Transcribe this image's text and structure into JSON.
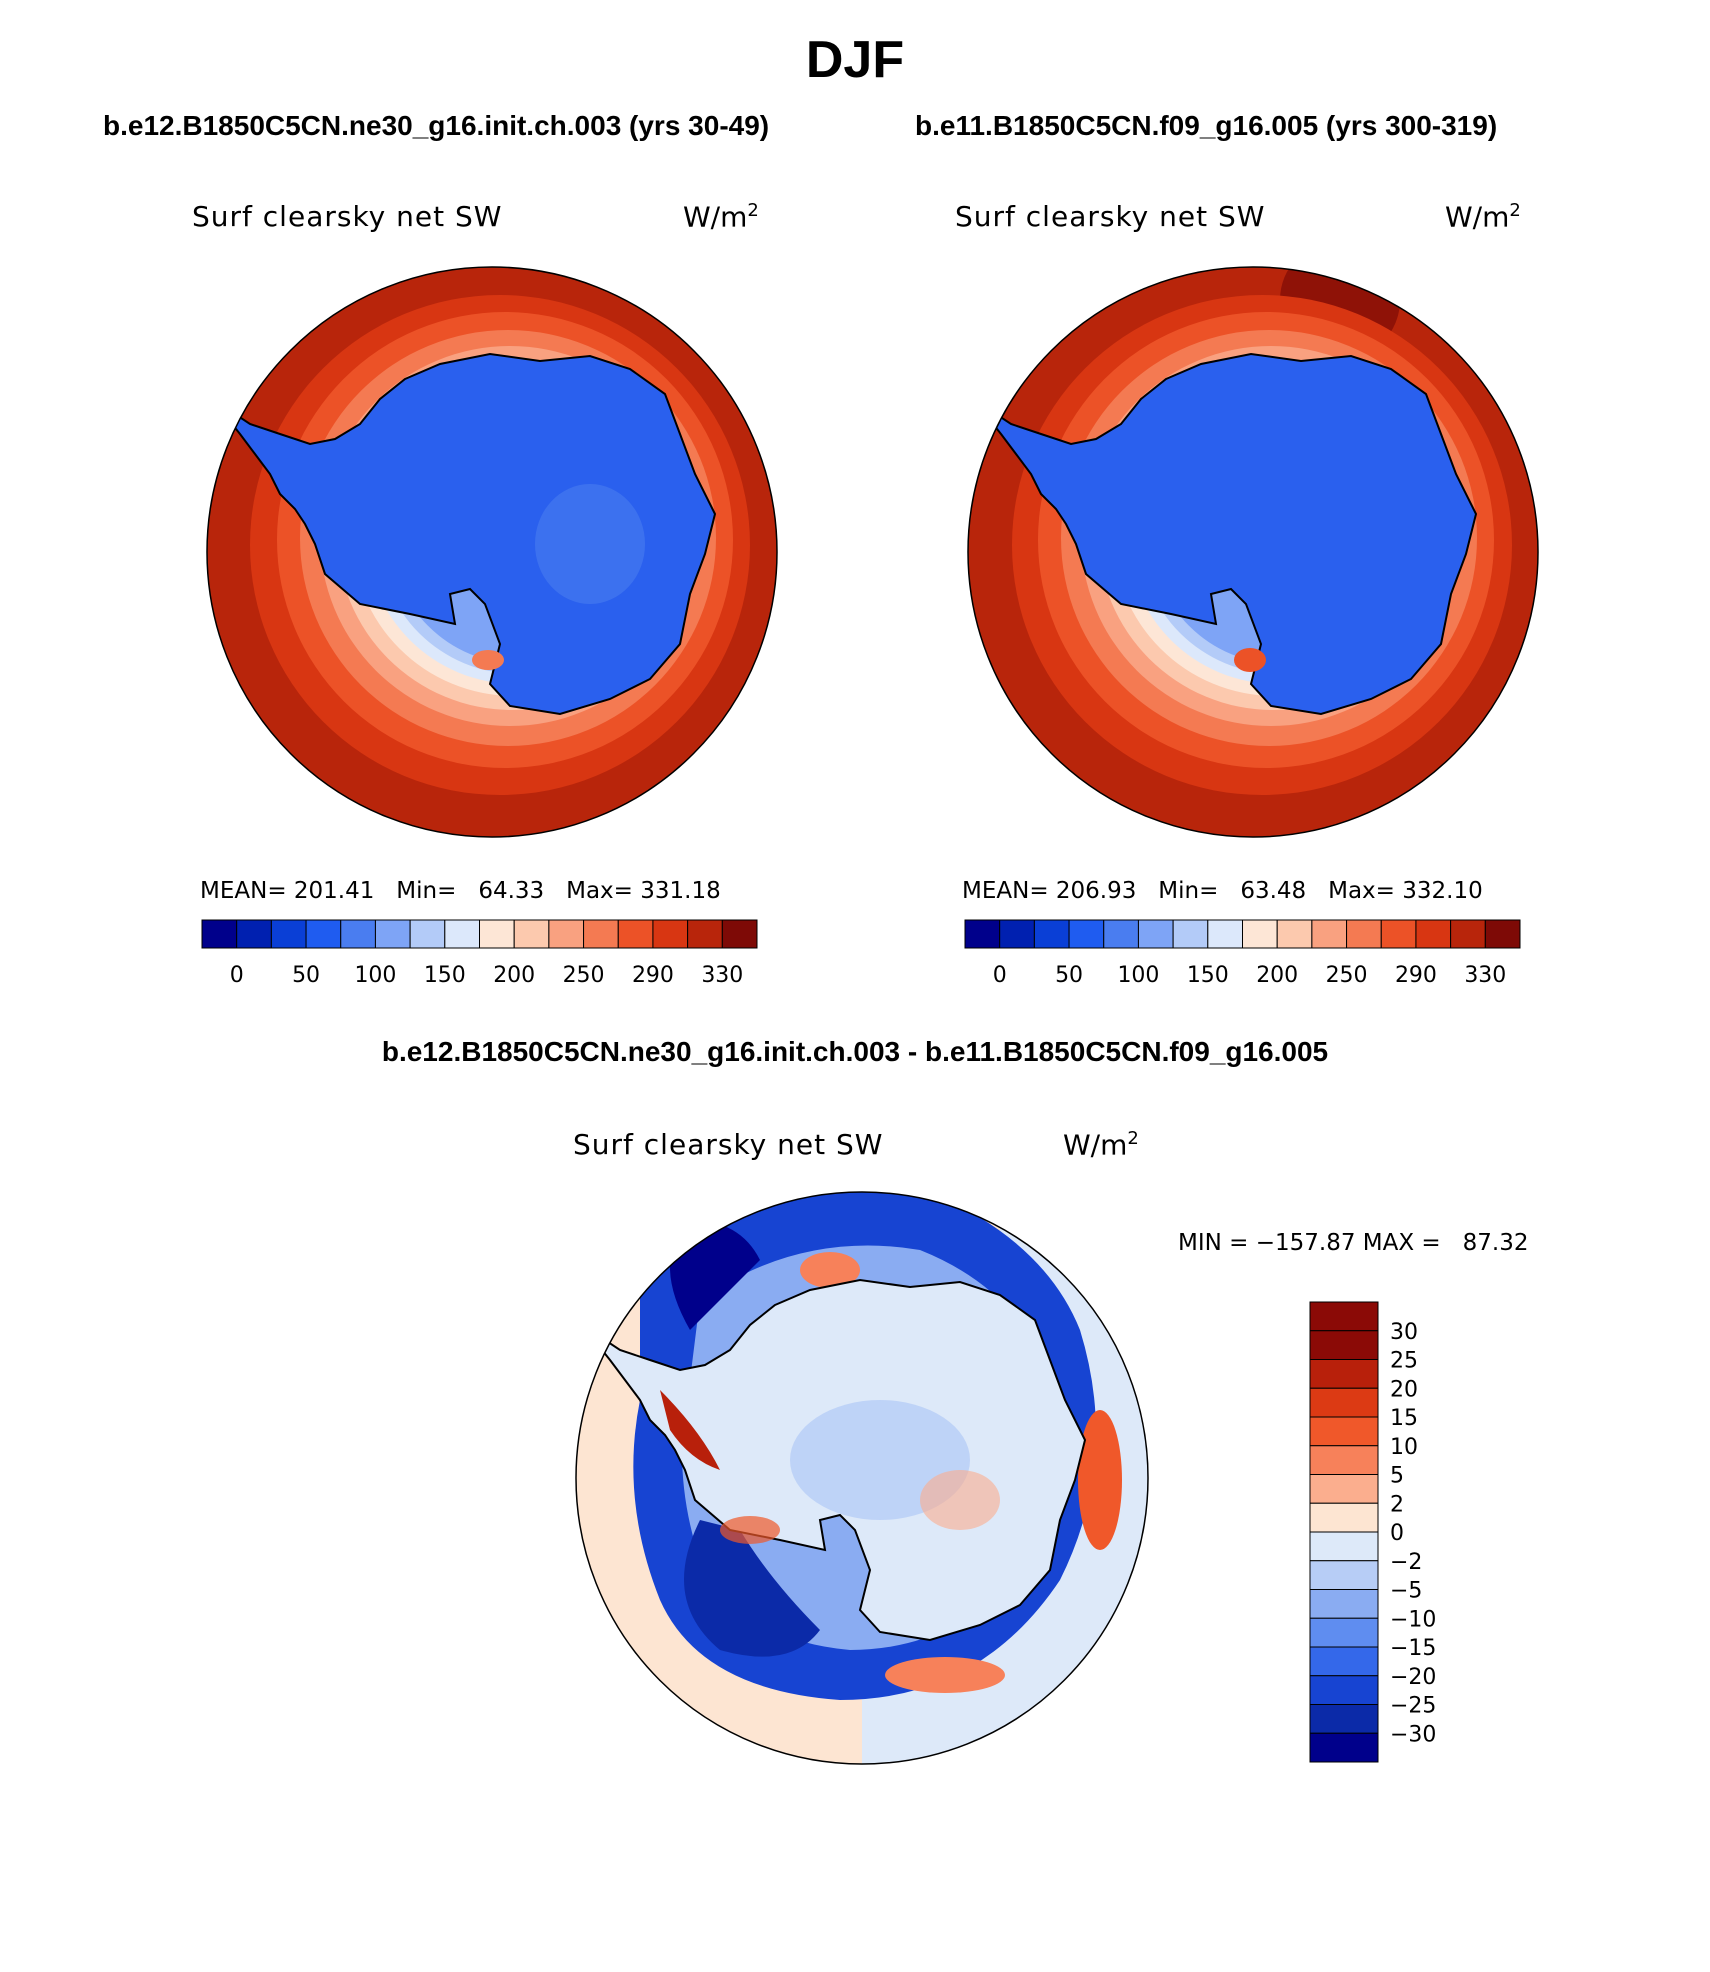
{
  "page_title": "DJF",
  "panels": {
    "left": {
      "case": "b.e12.B1850C5CN.ne30_g16.init.ch.003 (yrs 30-49)",
      "var_title": "Surf clearsky net SW",
      "units": "W/m",
      "units_sup": "2",
      "stats": "MEAN= 201.41   Min=   64.33   Max= 331.18"
    },
    "right": {
      "case": "b.e11.B1850C5CN.f09_g16.005 (yrs 300-319)",
      "var_title": "Surf clearsky net SW",
      "units": "W/m",
      "units_sup": "2",
      "stats": "MEAN= 206.93   Min=   63.48   Max= 332.10"
    },
    "diff": {
      "case": "b.e12.B1850C5CN.ne30_g16.init.ch.003 - b.e11.B1850C5CN.f09_g16.005",
      "var_title": "Surf clearsky net SW",
      "units": "W/m",
      "units_sup": "2",
      "stats": "MIN = −157.87 MAX =   87.32"
    }
  },
  "colorbar_top": {
    "labels": [
      "0",
      "50",
      "100",
      "150",
      "200",
      "250",
      "290",
      "330"
    ],
    "colors": [
      "#00008b",
      "#0020b0",
      "#0a3fd6",
      "#1f5cf0",
      "#4a7df0",
      "#7ea4f6",
      "#b3cbf8",
      "#dce8fb",
      "#fde6d6",
      "#fcc9ae",
      "#f9a180",
      "#f47a52",
      "#ec5227",
      "#d83612",
      "#b8250b",
      "#7e0a06"
    ]
  },
  "colorbar_diff": {
    "labels": [
      "30",
      "25",
      "20",
      "15",
      "10",
      "5",
      "2",
      "0",
      "−2",
      "−5",
      "−10",
      "−15",
      "−20",
      "−25",
      "−30"
    ],
    "colors": [
      "#8b0a06",
      "#b8200b",
      "#dc3a14",
      "#f0582a",
      "#f7815a",
      "#fbae8e",
      "#fde5d2",
      "#dde9f9",
      "#b7cdf6",
      "#8aacf2",
      "#5f8df0",
      "#3468ea",
      "#1744d2",
      "#0b2aa8",
      "#00008b"
    ]
  },
  "chart_data": [
    {
      "type": "heatmap",
      "projection": "south-polar stereographic",
      "title": "Surf clearsky net SW",
      "units": "W/m2",
      "case": "b.e12.B1850C5CN.ne30_g16.init.ch.003 (yrs 30-49)",
      "mean": 201.41,
      "min": 64.33,
      "max": 331.18,
      "levels": [
        0,
        25,
        50,
        75,
        100,
        125,
        150,
        175,
        200,
        225,
        250,
        270,
        290,
        310,
        330
      ]
    },
    {
      "type": "heatmap",
      "projection": "south-polar stereographic",
      "title": "Surf clearsky net SW",
      "units": "W/m2",
      "case": "b.e11.B1850C5CN.f09_g16.005 (yrs 300-319)",
      "mean": 206.93,
      "min": 63.48,
      "max": 332.1,
      "levels": [
        0,
        25,
        50,
        75,
        100,
        125,
        150,
        175,
        200,
        225,
        250,
        270,
        290,
        310,
        330
      ]
    },
    {
      "type": "heatmap",
      "projection": "south-polar stereographic",
      "title": "Surf clearsky net SW",
      "units": "W/m2",
      "case": "difference",
      "min": -157.87,
      "max": 87.32,
      "levels": [
        -30,
        -25,
        -20,
        -15,
        -10,
        -5,
        -2,
        0,
        2,
        5,
        10,
        15,
        20,
        25,
        30
      ]
    }
  ]
}
